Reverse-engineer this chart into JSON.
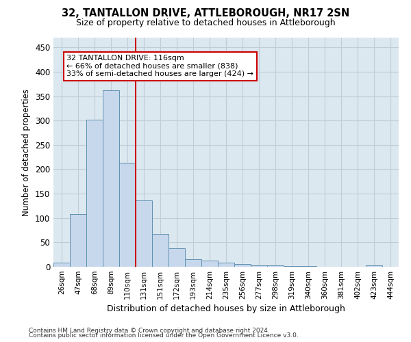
{
  "title": "32, TANTALLON DRIVE, ATTLEBOROUGH, NR17 2SN",
  "subtitle": "Size of property relative to detached houses in Attleborough",
  "xlabel": "Distribution of detached houses by size in Attleborough",
  "ylabel": "Number of detached properties",
  "footnote1": "Contains HM Land Registry data © Crown copyright and database right 2024.",
  "footnote2": "Contains public sector information licensed under the Open Government Licence v3.0.",
  "bar_color": "#c8d8ec",
  "bar_edge_color": "#6090b0",
  "grid_color": "#c0ccd8",
  "vline_color": "#cc0000",
  "vline_x_index": 4.5,
  "annotation_line1": "32 TANTALLON DRIVE: 116sqm",
  "annotation_line2": "← 66% of detached houses are smaller (838)",
  "annotation_line3": "33% of semi-detached houses are larger (424) →",
  "annotation_box_color": "#cc0000",
  "categories": [
    "26sqm",
    "47sqm",
    "68sqm",
    "89sqm",
    "110sqm",
    "131sqm",
    "151sqm",
    "172sqm",
    "193sqm",
    "214sqm",
    "235sqm",
    "256sqm",
    "277sqm",
    "298sqm",
    "319sqm",
    "340sqm",
    "360sqm",
    "381sqm",
    "402sqm",
    "423sqm",
    "444sqm"
  ],
  "values": [
    8,
    108,
    301,
    362,
    213,
    136,
    68,
    38,
    15,
    12,
    9,
    6,
    3,
    3,
    2,
    1,
    0,
    0,
    0,
    3,
    0
  ],
  "ylim": [
    0,
    470
  ],
  "yticks": [
    0,
    50,
    100,
    150,
    200,
    250,
    300,
    350,
    400,
    450
  ],
  "background_color": "#dce8f0",
  "figsize": [
    6.0,
    5.0
  ],
  "dpi": 100
}
